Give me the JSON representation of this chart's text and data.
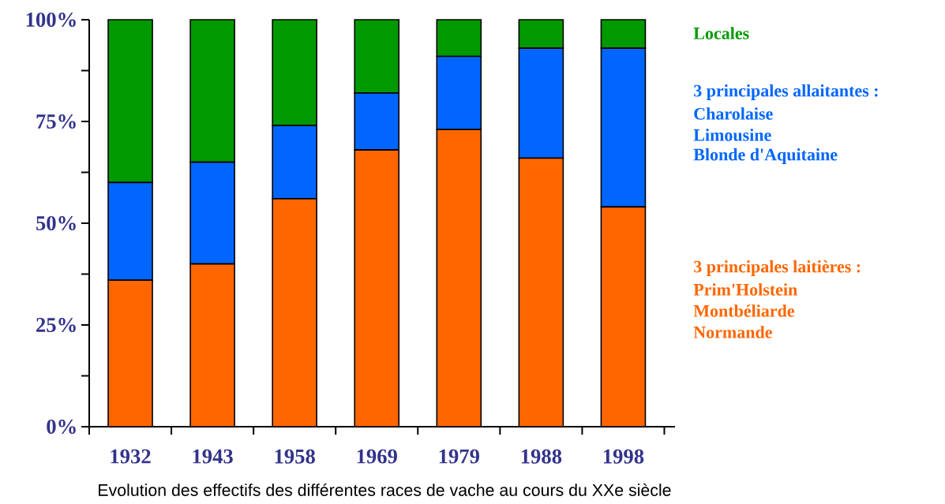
{
  "chart_data": {
    "type": "bar",
    "stacked": true,
    "title": "Evolution des effectifs des différentes races de vache au cours du XXe siècle",
    "categories": [
      "1932",
      "1943",
      "1958",
      "1969",
      "1979",
      "1988",
      "1998"
    ],
    "series": [
      {
        "name": "3 principales laitières :",
        "color": "#ff6600",
        "values": [
          36,
          40,
          56,
          68,
          73,
          66,
          54
        ]
      },
      {
        "name": "3 principales allaitantes :",
        "color": "#0066ff",
        "values": [
          24,
          25,
          18,
          14,
          18,
          27,
          39
        ]
      },
      {
        "name": "Locales",
        "color": "#009900",
        "values": [
          40,
          35,
          26,
          18,
          9,
          7,
          7
        ]
      }
    ],
    "annotations": [
      "Charolaise",
      "Limousine",
      "Blonde d'Aquitaine",
      "Prim'Holstein",
      "Montbéliarde",
      "Normande"
    ],
    "ylim": [
      0,
      100
    ],
    "yticks": [
      {
        "value": 0,
        "label": "0%"
      },
      {
        "value": 12.5,
        "label": null
      },
      {
        "value": 25,
        "label": "25%"
      },
      {
        "value": 37.5,
        "label": null
      },
      {
        "value": 50,
        "label": "50%"
      },
      {
        "value": 62.5,
        "label": null
      },
      {
        "value": 75,
        "label": "75%"
      },
      {
        "value": 87.5,
        "label": null
      },
      {
        "value": 100,
        "label": "100%"
      }
    ],
    "legend": "right"
  }
}
